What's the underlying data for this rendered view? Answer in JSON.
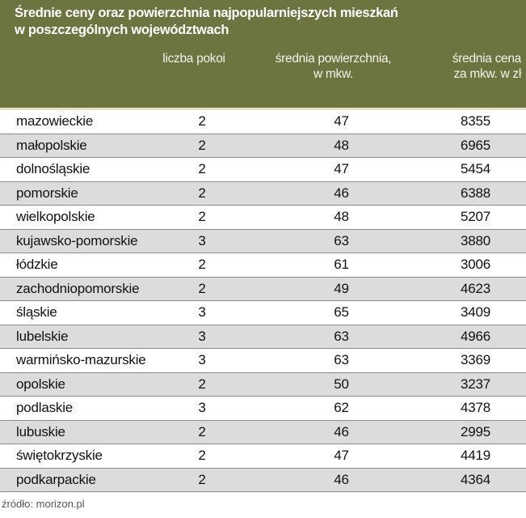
{
  "chart_data": {
    "type": "table",
    "title": "Średnie ceny oraz powierzchnia najpopularniejszych mieszkań w poszczególnych województwach",
    "title_lines": [
      "Średnie ceny oraz powierzchnia najpopularniejszych mieszkań",
      "w poszczególnych województwach"
    ],
    "columns": [
      "",
      "liczba pokoi",
      "średnia powierzchnia, w mkw.",
      "średnia cena za mkw. w zł"
    ],
    "column_lines": {
      "rooms": [
        "liczba pokoi"
      ],
      "area": [
        "średnia powierzchnia,",
        "w mkw."
      ],
      "price": [
        "średnia cena",
        "za mkw. w zł"
      ]
    },
    "rows": [
      {
        "region": "mazowieckie",
        "rooms": "2",
        "area": "47",
        "price": "8355"
      },
      {
        "region": "małopolskie",
        "rooms": "2",
        "area": "48",
        "price": "6965"
      },
      {
        "region": "dolnośląskie",
        "rooms": "2",
        "area": "47",
        "price": "5454"
      },
      {
        "region": "pomorskie",
        "rooms": "2",
        "area": "46",
        "price": "6388"
      },
      {
        "region": "wielkopolskie",
        "rooms": "2",
        "area": "48",
        "price": "5207"
      },
      {
        "region": "kujawsko-pomorskie",
        "rooms": "3",
        "area": "63",
        "price": "3880"
      },
      {
        "region": "łódzkie",
        "rooms": "2",
        "area": "61",
        "price": "3006"
      },
      {
        "region": "zachodniopomorskie",
        "rooms": "2",
        "area": "49",
        "price": "4623"
      },
      {
        "region": "śląskie",
        "rooms": "3",
        "area": "65",
        "price": "3409"
      },
      {
        "region": "lubelskie",
        "rooms": "3",
        "area": "63",
        "price": "4966"
      },
      {
        "region": "warmińsko-mazurskie",
        "rooms": "3",
        "area": "63",
        "price": "3369"
      },
      {
        "region": "opolskie",
        "rooms": "2",
        "area": "50",
        "price": "3237"
      },
      {
        "region": "podlaskie",
        "rooms": "3",
        "area": "62",
        "price": "4378"
      },
      {
        "region": "lubuskie",
        "rooms": "2",
        "area": "46",
        "price": "2995"
      },
      {
        "region": "świętokrzyskie",
        "rooms": "2",
        "area": "47",
        "price": "4419"
      },
      {
        "region": "podkarpackie",
        "rooms": "2",
        "area": "46",
        "price": "4364"
      }
    ],
    "source": "źródło: morizon.pl"
  },
  "colors": {
    "header": "#6e7440",
    "alt_row": "#dcdcdc"
  }
}
